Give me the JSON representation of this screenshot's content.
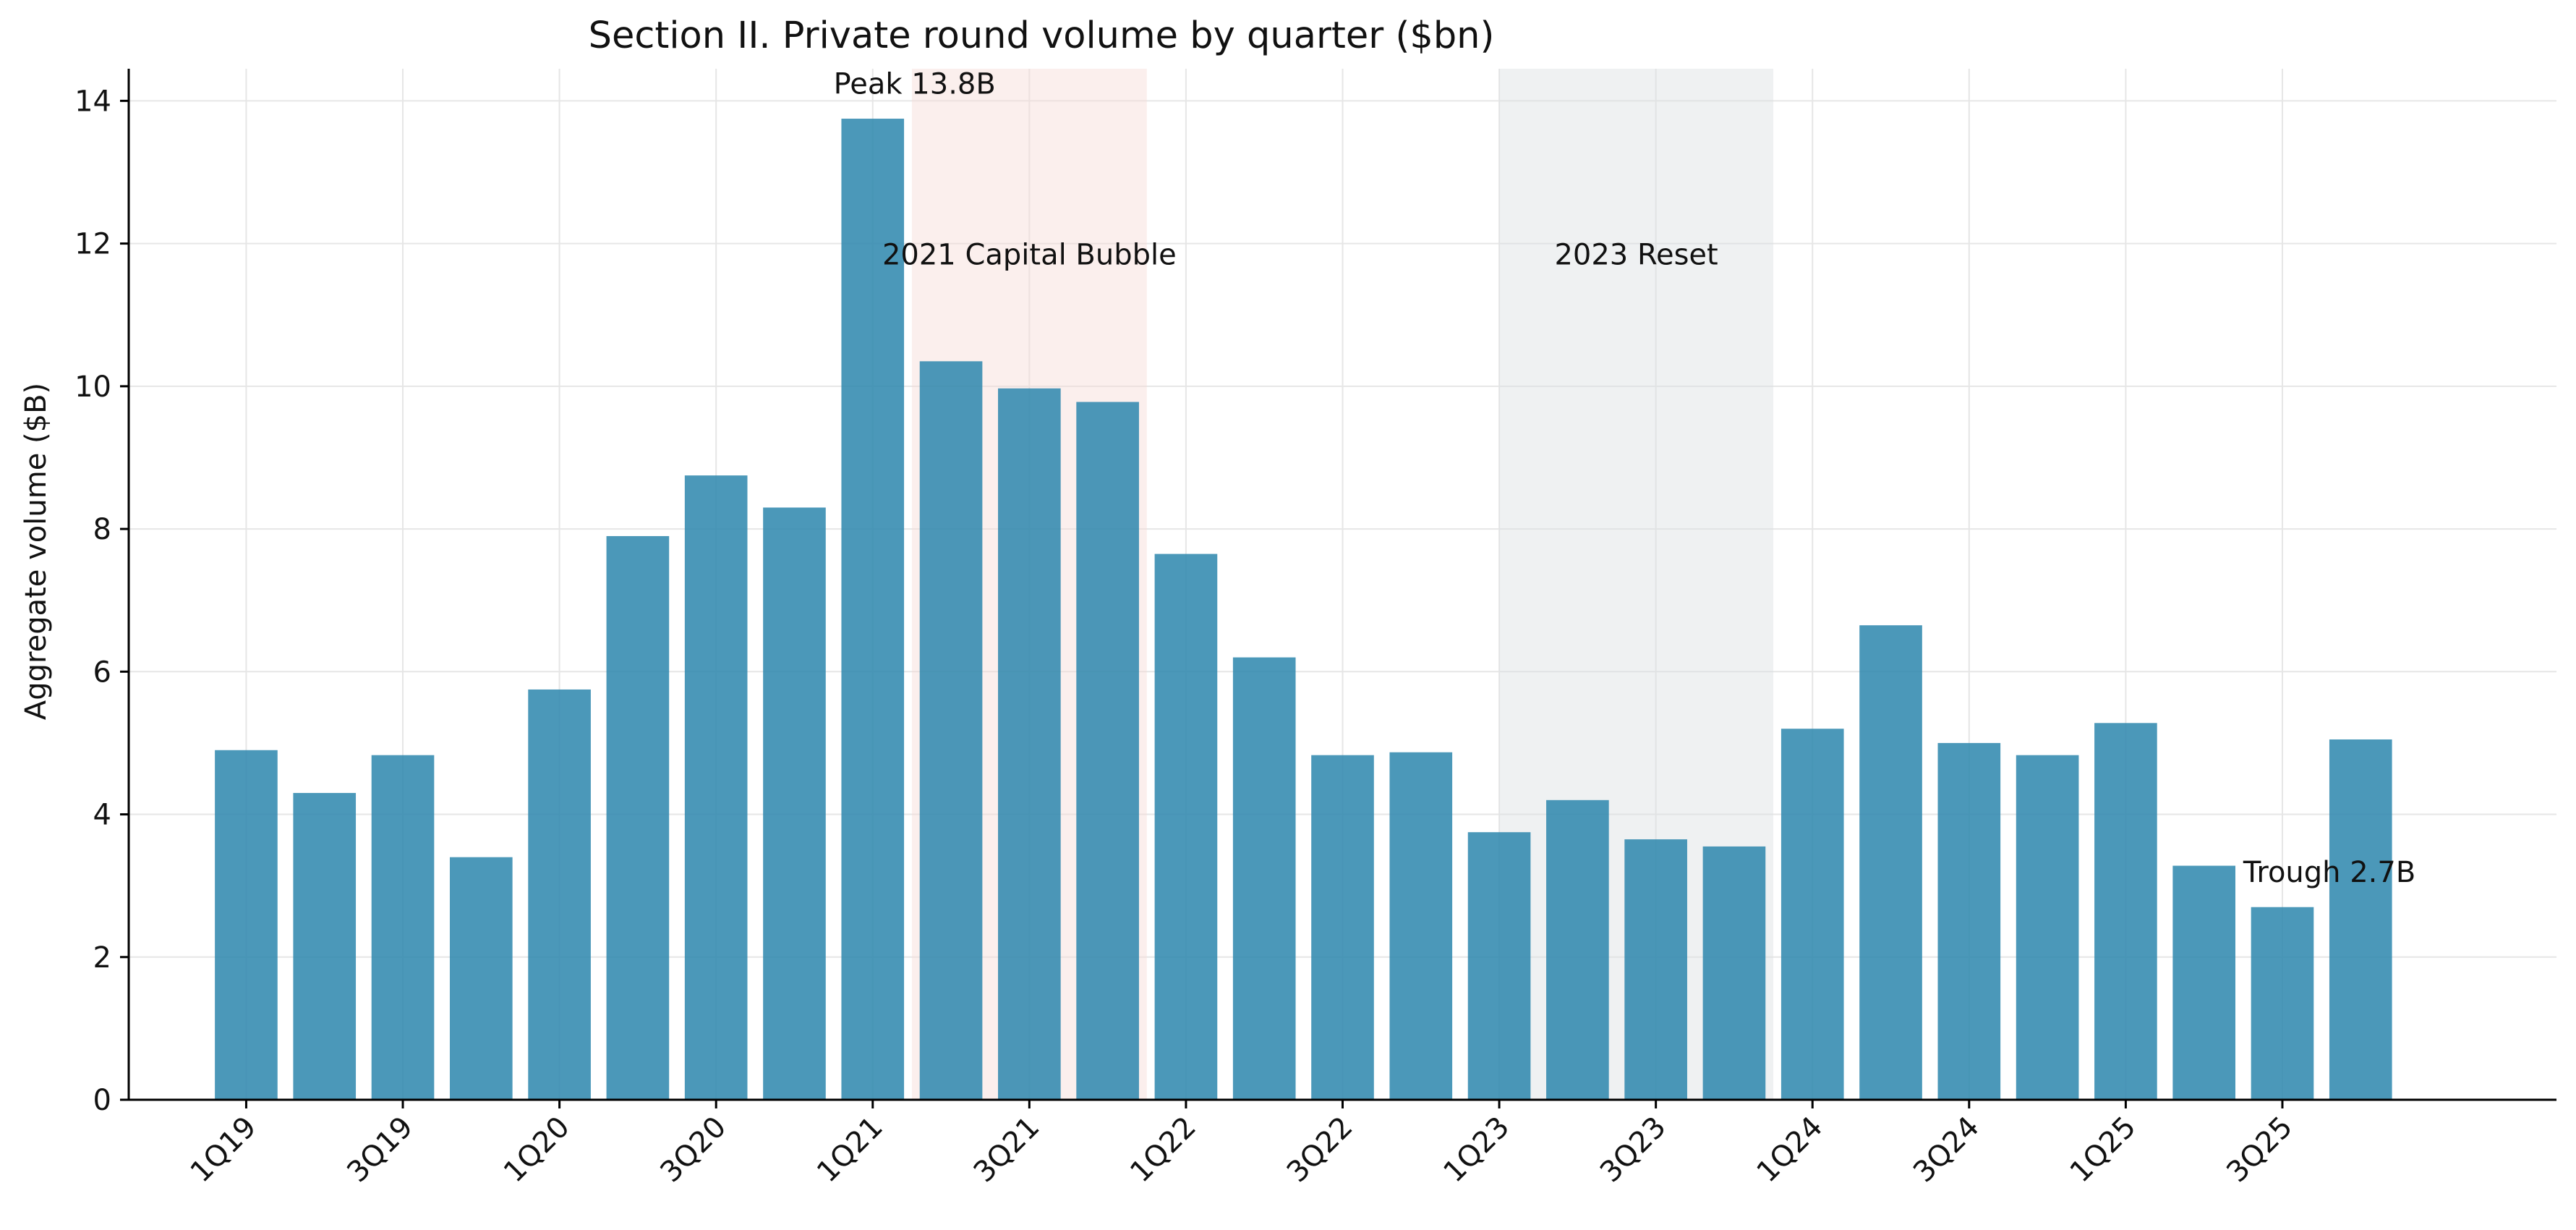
{
  "chart_data": {
    "type": "bar",
    "title": "Section II. Private round volume by quarter ($bn)",
    "xlabel": "",
    "ylabel": "Aggregate volume ($B)",
    "ylim": [
      0,
      14.45
    ],
    "yticks": [
      0,
      2,
      4,
      6,
      8,
      10,
      12,
      14
    ],
    "grid": true,
    "categories": [
      "1Q19",
      "2Q19",
      "3Q19",
      "4Q19",
      "1Q20",
      "2Q20",
      "3Q20",
      "4Q20",
      "1Q21",
      "2Q21",
      "3Q21",
      "4Q21",
      "1Q22",
      "2Q22",
      "3Q22",
      "4Q22",
      "1Q23",
      "2Q23",
      "3Q23",
      "4Q23",
      "1Q24",
      "2Q24",
      "3Q24",
      "4Q24",
      "1Q25",
      "2Q25",
      "3Q25",
      "4Q25"
    ],
    "xtick_labels": [
      "1Q19",
      "3Q19",
      "1Q20",
      "3Q20",
      "1Q21",
      "3Q21",
      "1Q22",
      "3Q22",
      "1Q23",
      "3Q23",
      "1Q24",
      "3Q24",
      "1Q25",
      "3Q25"
    ],
    "values": [
      4.9,
      4.3,
      4.83,
      3.4,
      5.75,
      7.9,
      8.75,
      8.3,
      13.75,
      10.35,
      9.97,
      9.78,
      7.65,
      6.2,
      4.83,
      4.87,
      3.75,
      4.2,
      3.65,
      3.55,
      5.2,
      6.65,
      5.0,
      4.83,
      5.28,
      3.28,
      2.7,
      5.05
    ],
    "bar_color": "#2b86ad",
    "regions": [
      {
        "label": "2021 Capital Bubble",
        "start": 8.5,
        "end": 11.5,
        "color": "#f6dcd6",
        "label_y": 11.85
      },
      {
        "label": "2023 Reset",
        "start": 16.0,
        "end": 19.5,
        "color": "#dcdfe3",
        "label_y": 11.85
      }
    ],
    "annotations": [
      {
        "text": "Peak 13.8B",
        "x": 8.0,
        "y": 14.1
      },
      {
        "text": "Trough 2.7B",
        "x": 26.0,
        "y": 3.05
      }
    ]
  }
}
